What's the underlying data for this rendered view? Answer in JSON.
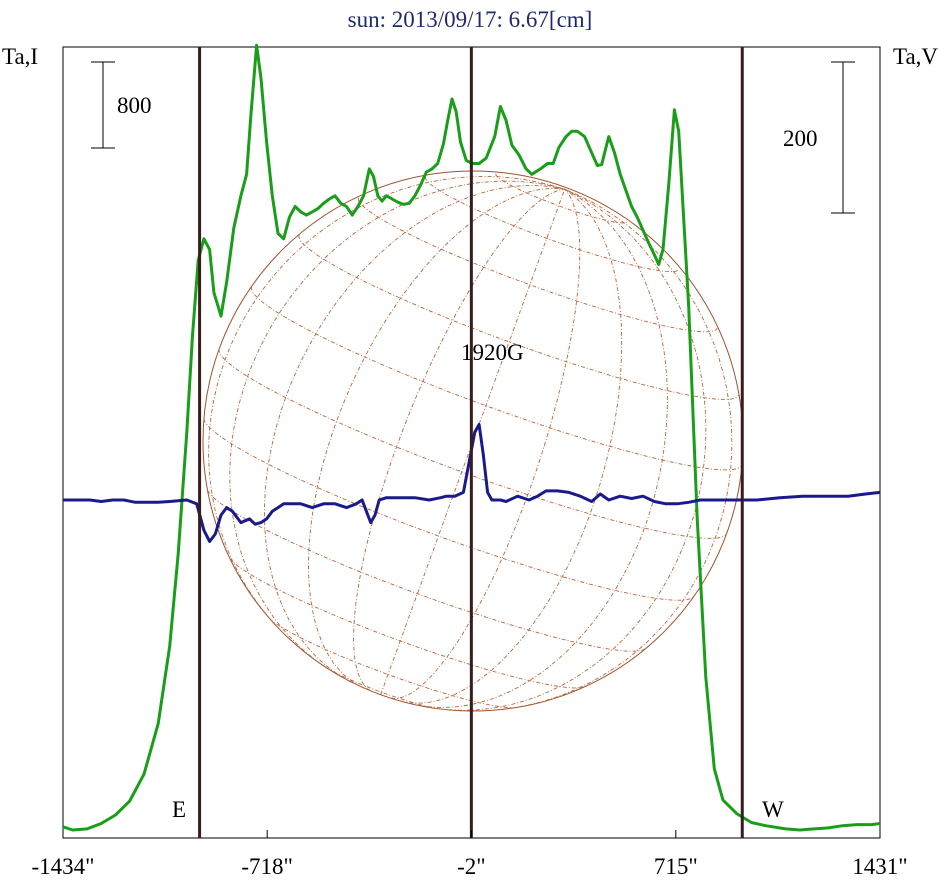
{
  "chart_data": {
    "type": "line",
    "title": "sun: 2013/09/17: 6.67[cm]",
    "left_axis_label": "Ta,I",
    "right_axis_label": "Ta,V",
    "left_scale_bar": "800",
    "right_scale_bar": "200",
    "annotation": "1920G",
    "limb_labels": {
      "east": "E",
      "west": "W"
    },
    "x_ticks": [
      {
        "value": -1434,
        "label": "-1434\""
      },
      {
        "value": -718,
        "label": "-718\""
      },
      {
        "value": -2,
        "label": "-2\""
      },
      {
        "value": 715,
        "label": "715\""
      },
      {
        "value": 1431,
        "label": "1431\""
      }
    ],
    "xlim": [
      -1434,
      1431
    ],
    "limb_lines_arcsec": [
      -955,
      -2,
      948
    ],
    "grid": false,
    "colors": {
      "intensity": "#1a9e1a",
      "polarization": "#1a1a8c",
      "limb_lines": "#3a1c1c",
      "disk": "#a0522d",
      "title": "#1f2a6b"
    },
    "series": [
      {
        "id": "intensity",
        "axis": "left",
        "points": [
          [
            -1434,
            30
          ],
          [
            -1400,
            0
          ],
          [
            -1350,
            10
          ],
          [
            -1300,
            60
          ],
          [
            -1250,
            140
          ],
          [
            -1200,
            270
          ],
          [
            -1150,
            520
          ],
          [
            -1100,
            990
          ],
          [
            -1060,
            1710
          ],
          [
            -1030,
            2570
          ],
          [
            -1000,
            3700
          ],
          [
            -980,
            4600
          ],
          [
            -960,
            5300
          ],
          [
            -940,
            5500
          ],
          [
            -920,
            5400
          ],
          [
            -905,
            5000
          ],
          [
            -880,
            4780
          ],
          [
            -860,
            5100
          ],
          [
            -835,
            5600
          ],
          [
            -810,
            5900
          ],
          [
            -790,
            6100
          ],
          [
            -775,
            6650
          ],
          [
            -755,
            7300
          ],
          [
            -740,
            7000
          ],
          [
            -720,
            6400
          ],
          [
            -700,
            5900
          ],
          [
            -680,
            5550
          ],
          [
            -660,
            5500
          ],
          [
            -640,
            5700
          ],
          [
            -620,
            5800
          ],
          [
            -600,
            5750
          ],
          [
            -580,
            5720
          ],
          [
            -560,
            5750
          ],
          [
            -540,
            5780
          ],
          [
            -520,
            5830
          ],
          [
            -500,
            5870
          ],
          [
            -480,
            5900
          ],
          [
            -460,
            5830
          ],
          [
            -440,
            5800
          ],
          [
            -420,
            5720
          ],
          [
            -400,
            5800
          ],
          [
            -380,
            5900
          ],
          [
            -360,
            6150
          ],
          [
            -345,
            6080
          ],
          [
            -330,
            5900
          ],
          [
            -315,
            5850
          ],
          [
            -300,
            5900
          ],
          [
            -280,
            5870
          ],
          [
            -260,
            5840
          ],
          [
            -240,
            5820
          ],
          [
            -220,
            5830
          ],
          [
            -200,
            5900
          ],
          [
            -180,
            6000
          ],
          [
            -160,
            6120
          ],
          [
            -140,
            6150
          ],
          [
            -120,
            6200
          ],
          [
            -100,
            6380
          ],
          [
            -85,
            6600
          ],
          [
            -70,
            6800
          ],
          [
            -55,
            6680
          ],
          [
            -40,
            6400
          ],
          [
            -20,
            6230
          ],
          [
            0,
            6200
          ],
          [
            25,
            6200
          ],
          [
            50,
            6250
          ],
          [
            80,
            6450
          ],
          [
            100,
            6730
          ],
          [
            120,
            6600
          ],
          [
            140,
            6370
          ],
          [
            165,
            6280
          ],
          [
            190,
            6150
          ],
          [
            210,
            6100
          ],
          [
            240,
            6150
          ],
          [
            265,
            6200
          ],
          [
            285,
            6200
          ],
          [
            305,
            6350
          ],
          [
            330,
            6450
          ],
          [
            350,
            6500
          ],
          [
            370,
            6500
          ],
          [
            395,
            6450
          ],
          [
            420,
            6300
          ],
          [
            440,
            6180
          ],
          [
            455,
            6190
          ],
          [
            470,
            6350
          ],
          [
            480,
            6450
          ],
          [
            500,
            6300
          ],
          [
            520,
            6100
          ],
          [
            540,
            5950
          ],
          [
            560,
            5800
          ],
          [
            580,
            5700
          ],
          [
            600,
            5580
          ],
          [
            620,
            5460
          ],
          [
            640,
            5350
          ],
          [
            655,
            5260
          ],
          [
            670,
            5400
          ],
          [
            690,
            6000
          ],
          [
            710,
            6700
          ],
          [
            725,
            6500
          ],
          [
            740,
            5800
          ],
          [
            760,
            4870
          ],
          [
            790,
            2900
          ],
          [
            820,
            1420
          ],
          [
            850,
            570
          ],
          [
            880,
            280
          ],
          [
            930,
            150
          ],
          [
            980,
            70
          ],
          [
            1030,
            40
          ],
          [
            1100,
            10
          ],
          [
            1150,
            0
          ],
          [
            1200,
            10
          ],
          [
            1250,
            20
          ],
          [
            1300,
            40
          ],
          [
            1350,
            50
          ],
          [
            1400,
            50
          ],
          [
            1431,
            60
          ]
        ]
      },
      {
        "id": "polarization",
        "axis": "right",
        "points": [
          [
            -1434,
            0
          ],
          [
            -1340,
            0
          ],
          [
            -1300,
            -2
          ],
          [
            -1260,
            0
          ],
          [
            -1220,
            0
          ],
          [
            -1180,
            -3
          ],
          [
            -1100,
            -3
          ],
          [
            -1060,
            -2
          ],
          [
            -1000,
            0
          ],
          [
            -965,
            -5
          ],
          [
            -940,
            -40
          ],
          [
            -920,
            -55
          ],
          [
            -900,
            -45
          ],
          [
            -880,
            -20
          ],
          [
            -860,
            -10
          ],
          [
            -840,
            -15
          ],
          [
            -810,
            -30
          ],
          [
            -780,
            -25
          ],
          [
            -760,
            -32
          ],
          [
            -740,
            -30
          ],
          [
            -720,
            -25
          ],
          [
            -700,
            -15
          ],
          [
            -680,
            -10
          ],
          [
            -660,
            -5
          ],
          [
            -600,
            -5
          ],
          [
            -560,
            -10
          ],
          [
            -520,
            -5
          ],
          [
            -480,
            -5
          ],
          [
            -440,
            -10
          ],
          [
            -405,
            -5
          ],
          [
            -385,
            0
          ],
          [
            -370,
            -15
          ],
          [
            -355,
            -30
          ],
          [
            -340,
            -20
          ],
          [
            -325,
            0
          ],
          [
            -300,
            3
          ],
          [
            -260,
            3
          ],
          [
            -200,
            3
          ],
          [
            -150,
            0
          ],
          [
            -110,
            3
          ],
          [
            -90,
            5
          ],
          [
            -60,
            5
          ],
          [
            -30,
            10
          ],
          [
            -10,
            50
          ],
          [
            10,
            90
          ],
          [
            25,
            100
          ],
          [
            40,
            60
          ],
          [
            55,
            10
          ],
          [
            70,
            0
          ],
          [
            100,
            0
          ],
          [
            120,
            -2
          ],
          [
            160,
            5
          ],
          [
            200,
            0
          ],
          [
            230,
            5
          ],
          [
            260,
            12
          ],
          [
            300,
            12
          ],
          [
            340,
            10
          ],
          [
            380,
            5
          ],
          [
            420,
            -2
          ],
          [
            450,
            8
          ],
          [
            480,
            0
          ],
          [
            520,
            5
          ],
          [
            560,
            2
          ],
          [
            600,
            5
          ],
          [
            640,
            -2
          ],
          [
            680,
            -5
          ],
          [
            720,
            -5
          ],
          [
            760,
            -3
          ],
          [
            800,
            0
          ],
          [
            860,
            0
          ],
          [
            920,
            0
          ],
          [
            1000,
            0
          ],
          [
            1080,
            3
          ],
          [
            1160,
            5
          ],
          [
            1240,
            5
          ],
          [
            1320,
            5
          ],
          [
            1380,
            8
          ],
          [
            1431,
            10
          ]
        ]
      }
    ]
  }
}
